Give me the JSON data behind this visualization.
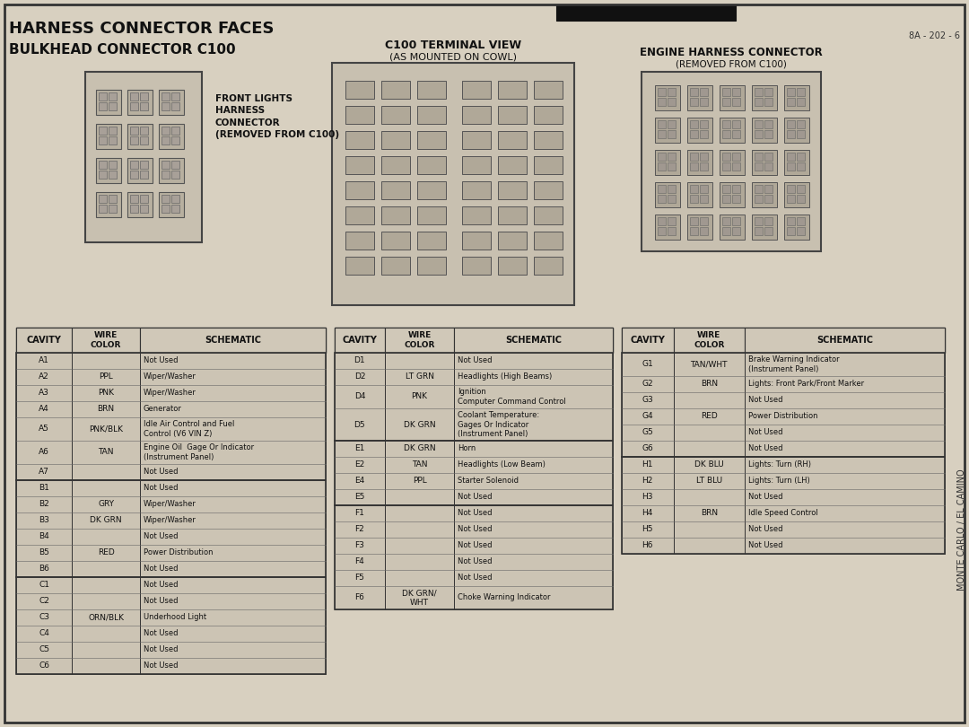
{
  "title1": "HARNESS CONNECTOR FACES",
  "title2": "BULKHEAD CONNECTOR C100",
  "bg_color": "#d8d0c0",
  "page_ref": "8A - 202 - 6",
  "diagram_labels": {
    "left": "FRONT LIGHTS\nHARNESS\nCONNECTOR\n(REMOVED FROM C100)",
    "center_title": "C100 TERMINAL VIEW",
    "center_sub": "(AS MOUNTED ON COWL)",
    "right_title": "ENGINE HARNESS CONNECTOR",
    "right_sub": "(REMOVED FROM C100)"
  },
  "table1_header": [
    "CAVITY",
    "WIRE\nCOLOR",
    "SCHEMATIC"
  ],
  "table1_rows": [
    [
      "A1",
      "",
      "Not Used"
    ],
    [
      "A2",
      "PPL",
      "Wiper/Washer"
    ],
    [
      "A3",
      "PNK",
      "Wiper/Washer"
    ],
    [
      "A4",
      "BRN",
      "Generator"
    ],
    [
      "A5",
      "PNK/BLK",
      "Idle Air Control and Fuel\nControl (V6 VIN Z)"
    ],
    [
      "A6",
      "TAN",
      "Engine Oil  Gage Or Indicator\n(Instrument Panel)"
    ],
    [
      "A7",
      "",
      "Not Used"
    ],
    [
      "B1",
      "",
      "Not Used"
    ],
    [
      "B2",
      "GRY",
      "Wiper/Washer"
    ],
    [
      "B3",
      "DK GRN",
      "Wiper/Washer"
    ],
    [
      "B4",
      "",
      "Not Used"
    ],
    [
      "B5",
      "RED",
      "Power Distribution"
    ],
    [
      "B6",
      "",
      "Not Used"
    ],
    [
      "C1",
      "",
      "Not Used"
    ],
    [
      "C2",
      "",
      "Not Used"
    ],
    [
      "C3",
      "ORN/BLK",
      "Underhood Light"
    ],
    [
      "C4",
      "",
      "Not Used"
    ],
    [
      "C5",
      "",
      "Not Used"
    ],
    [
      "C6",
      "",
      "Not Used"
    ]
  ],
  "table1_groups": [
    7,
    6,
    6
  ],
  "table2_header": [
    "CAVITY",
    "WIRE\nCOLOR",
    "SCHEMATIC"
  ],
  "table2_rows": [
    [
      "D1",
      "",
      "Not Used"
    ],
    [
      "D2",
      "LT GRN",
      "Headlights (High Beams)"
    ],
    [
      "D4",
      "PNK",
      "Ignition\nComputer Command Control"
    ],
    [
      "D5",
      "DK GRN",
      "Coolant Temperature:\nGages Or Indicator\n(Instrument Panel)"
    ],
    [
      "E1",
      "DK GRN",
      "Horn"
    ],
    [
      "E2",
      "TAN",
      "Headlights (Low Beam)"
    ],
    [
      "E4",
      "PPL",
      "Starter Solenoid"
    ],
    [
      "E5",
      "",
      "Not Used"
    ],
    [
      "F1",
      "",
      "Not Used"
    ],
    [
      "F2",
      "",
      "Not Used"
    ],
    [
      "F3",
      "",
      "Not Used"
    ],
    [
      "F4",
      "",
      "Not Used"
    ],
    [
      "F5",
      "",
      "Not Used"
    ],
    [
      "F6",
      "DK GRN/\nWHT",
      "Choke Warning Indicator"
    ]
  ],
  "table2_groups": [
    4,
    4,
    6
  ],
  "table3_header": [
    "CAVITY",
    "WIRE\nCOLOR",
    "SCHEMATIC"
  ],
  "table3_rows": [
    [
      "G1",
      "TAN/WHT",
      "Brake Warning Indicator\n(Instrument Panel)"
    ],
    [
      "G2",
      "BRN",
      "Lights: Front Park/Front Marker"
    ],
    [
      "G3",
      "",
      "Not Used"
    ],
    [
      "G4",
      "RED",
      "Power Distribution"
    ],
    [
      "G5",
      "",
      "Not Used"
    ],
    [
      "G6",
      "",
      "Not Used"
    ],
    [
      "H1",
      "DK BLU",
      "Lights: Turn (RH)"
    ],
    [
      "H2",
      "LT BLU",
      "Lights: Turn (LH)"
    ],
    [
      "H3",
      "",
      "Not Used"
    ],
    [
      "H4",
      "BRN",
      "Idle Speed Control"
    ],
    [
      "H5",
      "",
      "Not Used"
    ],
    [
      "H6",
      "",
      "Not Used"
    ]
  ],
  "table3_groups": [
    6,
    6
  ]
}
